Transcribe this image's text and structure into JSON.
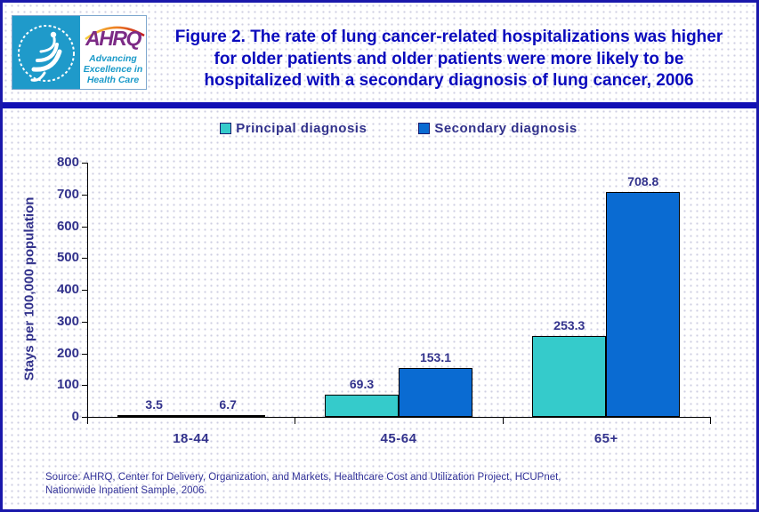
{
  "header": {
    "title_lines": [
      "Figure 2. The rate of lung cancer-related hospitalizations was higher",
      "for older patients and older patients were more likely to be",
      "hospitalized with a secondary diagnosis of lung cancer, 2006"
    ],
    "logo": {
      "ahrq_wordmark": "AHRQ",
      "tagline_lines": [
        "Advancing",
        "Excellence in",
        "Health Care"
      ]
    }
  },
  "legend": {
    "items": [
      {
        "label": "Principal diagnosis",
        "color": "#35cbcb"
      },
      {
        "label": "Secondary diagnosis",
        "color": "#0a6bd2"
      }
    ]
  },
  "chart_data": {
    "type": "bar",
    "title": "Figure 2. The rate of lung cancer-related hospitalizations was higher for older patients and older patients were more likely to be hospitalized with a secondary diagnosis of lung cancer, 2006",
    "categories": [
      "18-44",
      "45-64",
      "65+"
    ],
    "series": [
      {
        "name": "Principal diagnosis",
        "color": "#35cbcb",
        "values": [
          3.5,
          69.3,
          253.3
        ]
      },
      {
        "name": "Secondary diagnosis",
        "color": "#0a6bd2",
        "values": [
          6.7,
          153.1,
          708.8
        ]
      }
    ],
    "xlabel": "",
    "ylabel": "Stays per 100,000 population",
    "ylim": [
      0,
      800
    ],
    "ytick_step": 100,
    "grid": false,
    "value_labels": true,
    "legend_position": "top"
  },
  "source": {
    "line1": "Source: AHRQ, Center for Delivery, Organization, and Markets, Healthcare Cost and Utilization Project, HCUPnet,",
    "line2": "Nationwide Inpatient Sample, 2006."
  },
  "colors": {
    "page_border": "#1a18ab",
    "divider": "#1210b4",
    "title_text": "#0a0abd",
    "axis_text": "#32328c",
    "source_text": "#333399",
    "hhs_panel": "#1f9aca",
    "ahrq_purple": "#7c2b86",
    "tagline_teal": "#1a9ac9"
  }
}
